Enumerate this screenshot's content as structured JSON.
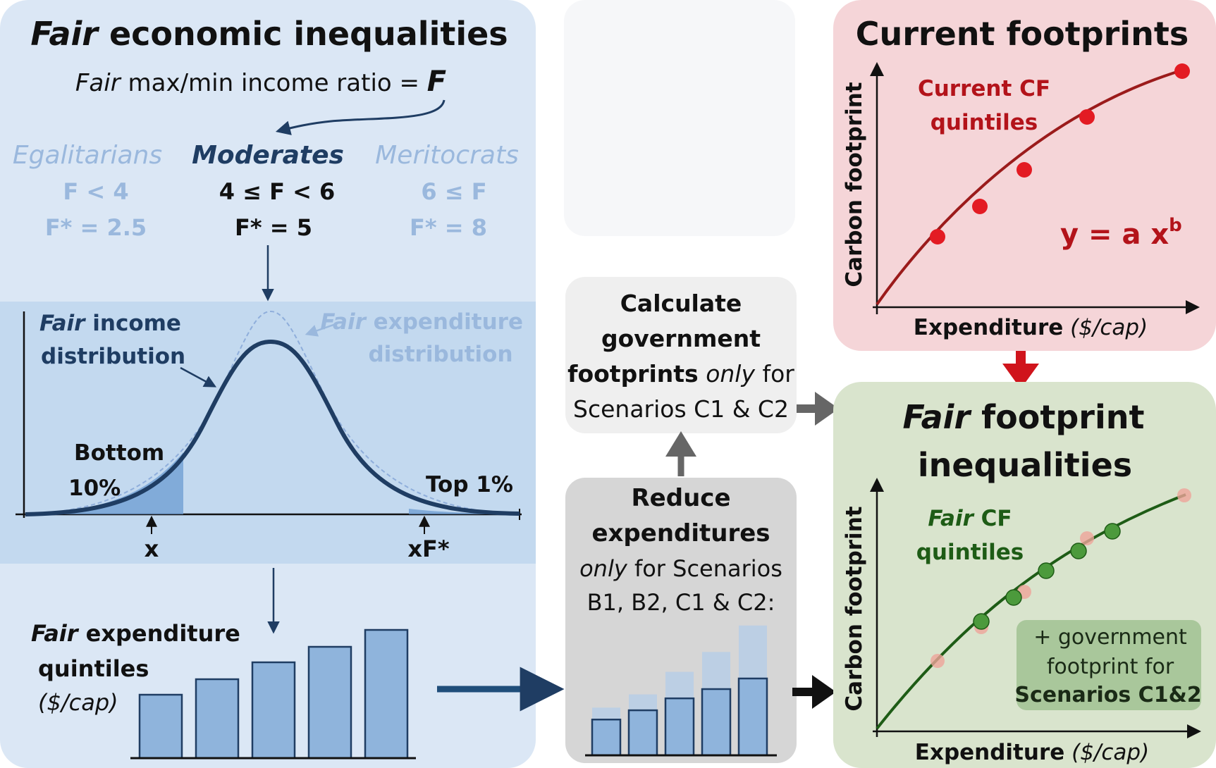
{
  "left_panel": {
    "title_italic": "Fair",
    "title_rest": " economic inequalities",
    "ratio_italic": "Fair",
    "ratio_rest": " max/min income ratio = ",
    "ratio_symbol": "F",
    "groups": [
      {
        "name": "Egalitarians",
        "range": "F < 4",
        "fstar": "F* = 2.5"
      },
      {
        "name": "Moderates",
        "range": "4 ≤ F < 6",
        "fstar": "F* = 5"
      },
      {
        "name": "Meritocrats",
        "range": "6 ≤ F",
        "fstar": "F* = 8"
      }
    ],
    "income_label_italic": "Fair",
    "income_label_rest": " income",
    "income_label_line2": "distribution",
    "expenditure_label_italic": "Fair",
    "expenditure_label_rest": " expenditure",
    "expenditure_label_line2": "distribution",
    "bottom_line1": "Bottom",
    "bottom_line2": "10%",
    "top_label": "Top 1%",
    "x_marker": "x",
    "xf_marker": "xF*",
    "quintiles_italic": "Fair",
    "quintiles_rest": " expenditure",
    "quintiles_line2": "quintiles",
    "quintiles_unit": "($/cap)",
    "quintile_bars": [
      0.45,
      0.56,
      0.68,
      0.79,
      0.91
    ]
  },
  "calc_box": {
    "line1": "Calculate",
    "line2": "government",
    "line3_bold": "footprints",
    "line3_italic": " only",
    "line3_rest": " for",
    "line4": "Scenarios C1 & C2"
  },
  "reduce_box": {
    "line1": "Reduce",
    "line2": "expenditures",
    "line3_italic": "only",
    "line3_rest": " for Scenarios",
    "line4": "B1, B2, C1 & C2:",
    "bars_full": [
      0.36,
      0.46,
      0.63,
      0.78,
      0.98
    ],
    "bars_reduced": [
      0.27,
      0.34,
      0.43,
      0.5,
      0.58
    ]
  },
  "current_panel": {
    "title": "Current footprints",
    "cf_line1": "Current CF",
    "cf_line2": "quintiles",
    "equation": "y = a x",
    "equation_sup": "b",
    "ylabel": "Carbon footprint",
    "xlabel_bold": "Expenditure",
    "xlabel_italic": " ($/cap)",
    "colors": {
      "curve": "#9b1b1b",
      "points": "#e31b23",
      "label": "#b3131a"
    }
  },
  "fair_panel": {
    "title_italic": "Fair",
    "title_rest": " footprint",
    "title_line2": "inequalities",
    "cf_italic": "Fair",
    "cf_rest": " CF",
    "cf_line2": "quintiles",
    "gov_line1": "+ government",
    "gov_line2": "footprint for",
    "gov_line3": "Scenarios  C1&2",
    "ylabel": "Carbon footprint",
    "xlabel_bold": "Expenditure",
    "xlabel_italic": " ($/cap)",
    "colors": {
      "curve": "#1e5c16",
      "points": "#4c9a3c",
      "faded_points": "#eda49a"
    }
  },
  "colors": {
    "left_bg": "#dbe7f5",
    "band_bg": "#c3d9ef",
    "dark_blue": "#1f3d63",
    "faded_blue": "#9ab8dd",
    "bar_fill": "#8fb4dc",
    "current_bg": "#f5d5d8",
    "fair_bg": "#d9e4cd",
    "calc_bg": "#efefef",
    "reduce_bg": "#d6d6d6"
  }
}
